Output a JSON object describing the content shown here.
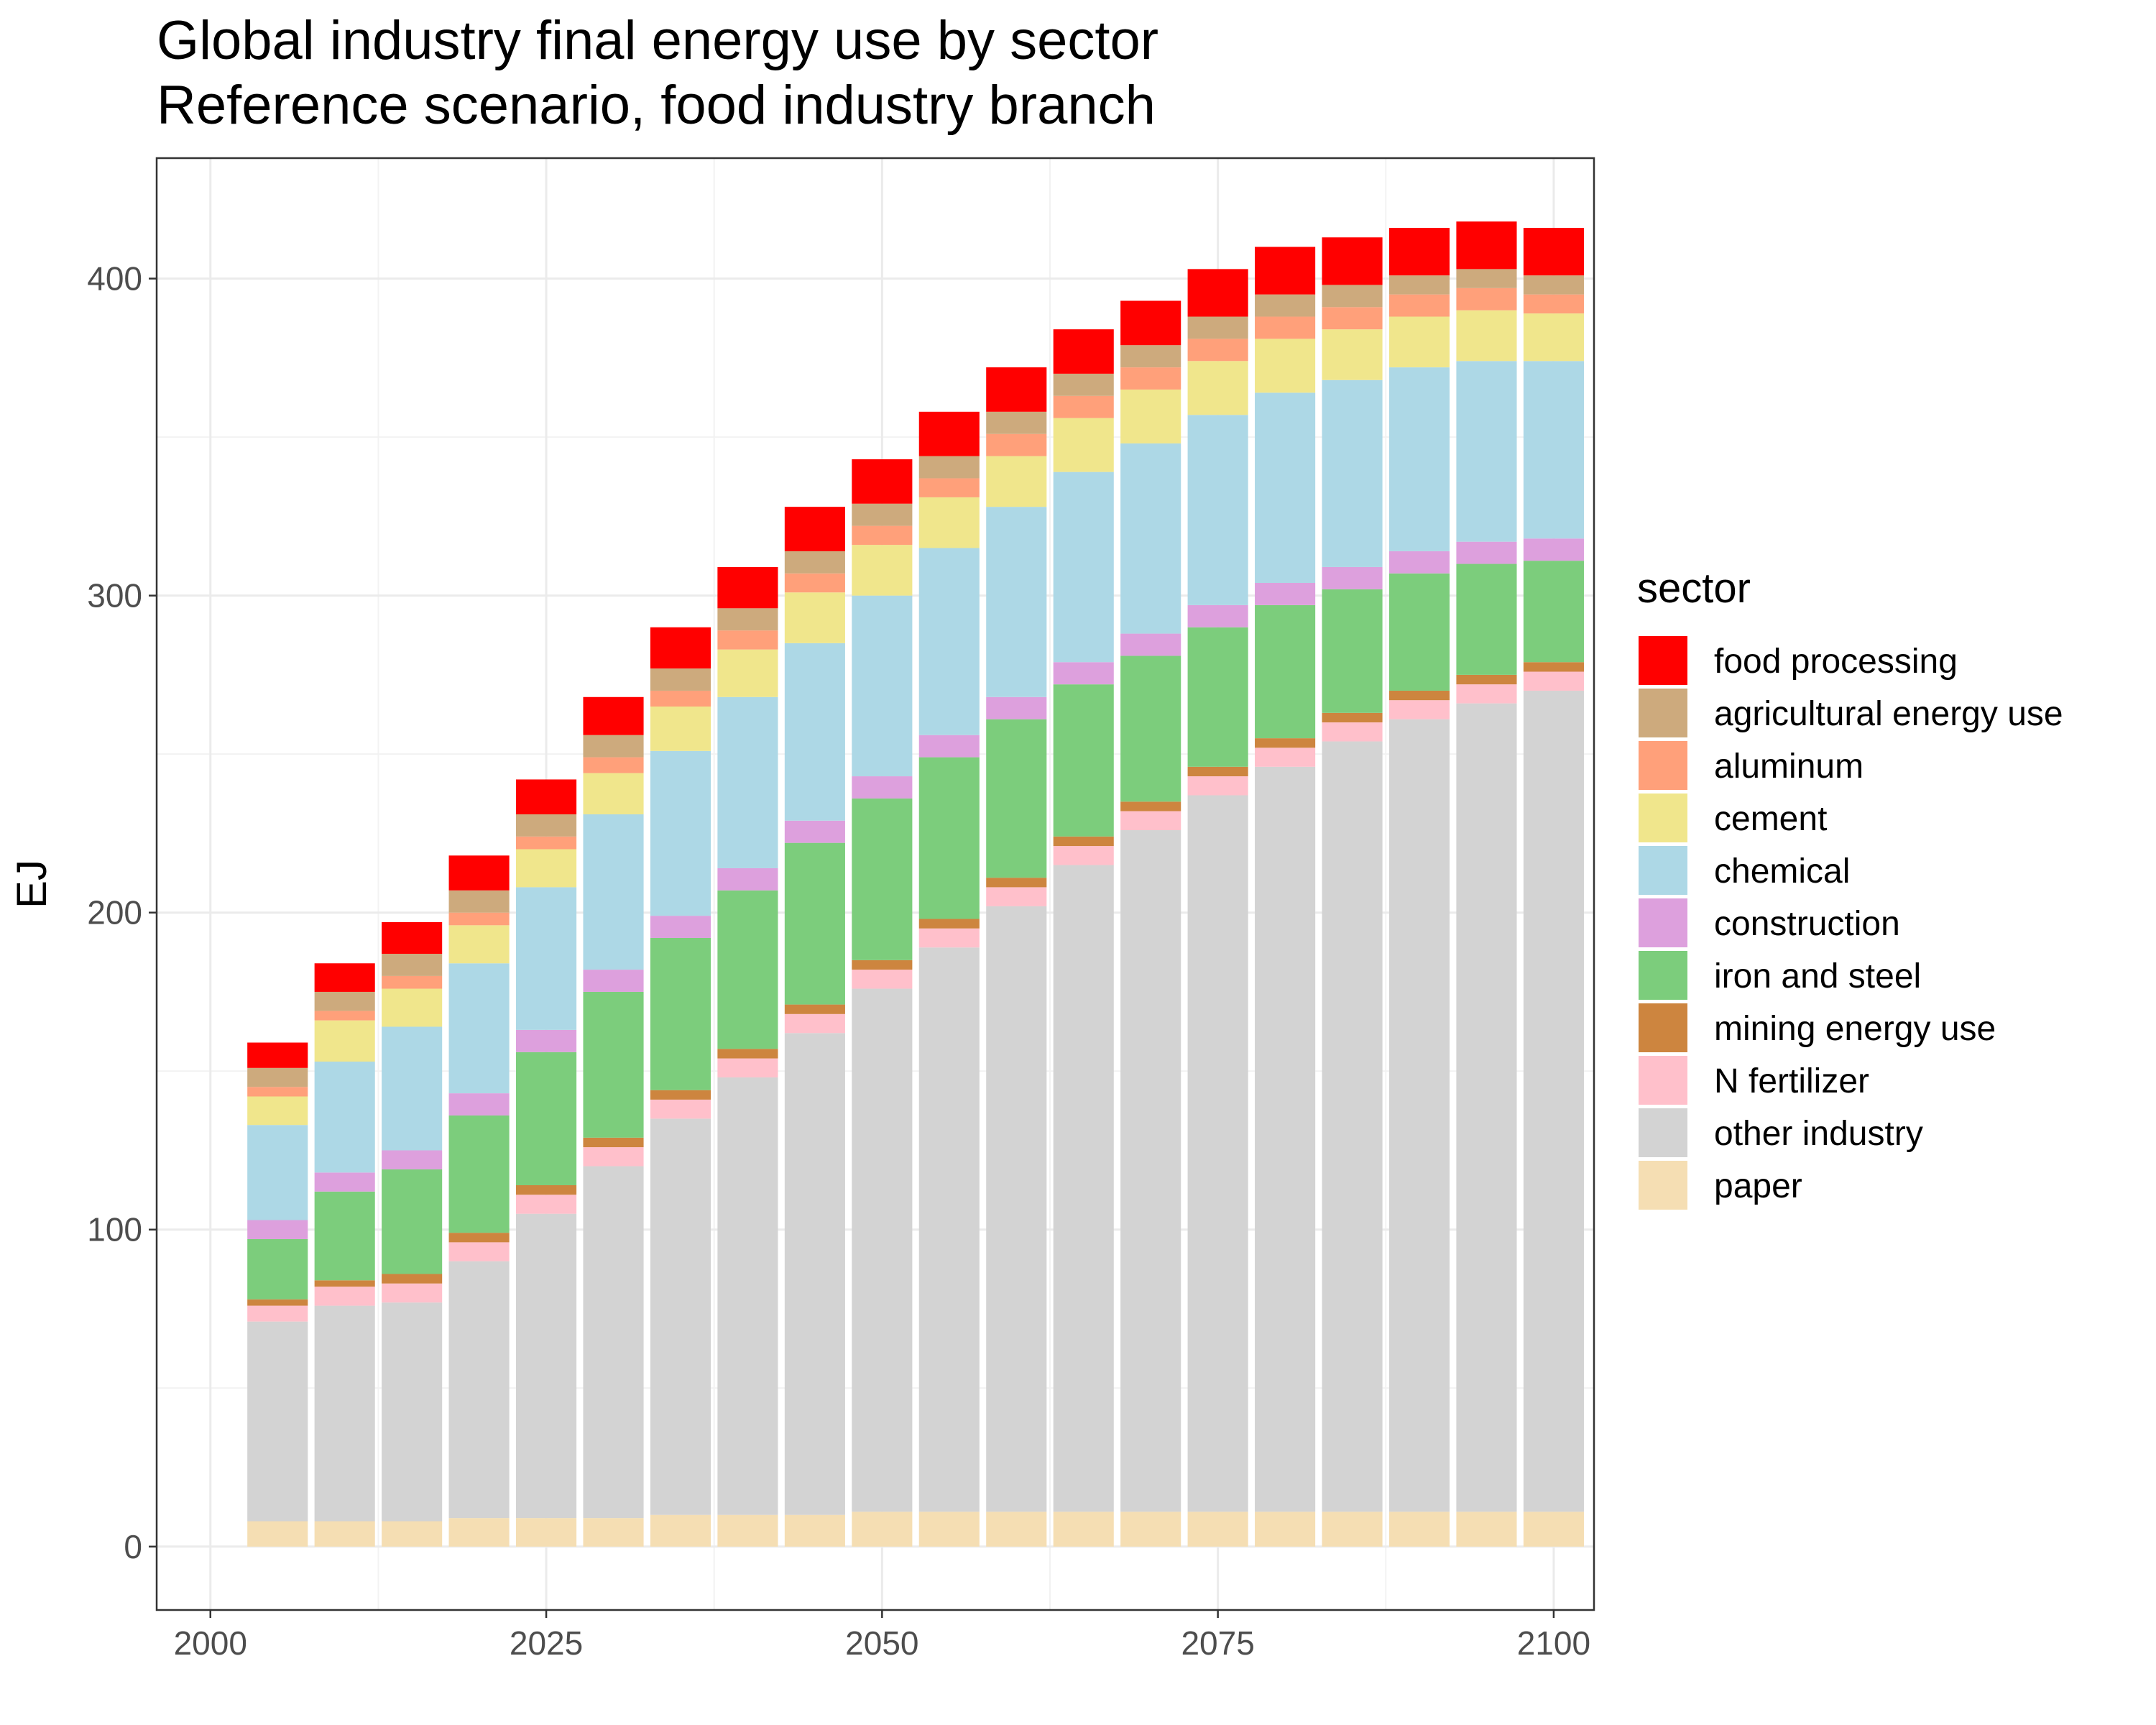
{
  "chart_data": {
    "type": "bar",
    "stacked": true,
    "title": "Global industry final energy use by sector",
    "subtitle": "Reference scenario, food industry branch",
    "xlabel": "",
    "ylabel": "EJ",
    "x": [
      2005,
      2010,
      2015,
      2020,
      2025,
      2030,
      2035,
      2040,
      2045,
      2050,
      2055,
      2060,
      2065,
      2070,
      2075,
      2080,
      2085,
      2090,
      2095,
      2100
    ],
    "xlim": [
      1996,
      2103
    ],
    "ylim": [
      -20,
      438
    ],
    "x_ticks": [
      2000,
      2025,
      2050,
      2075,
      2100
    ],
    "y_ticks": [
      0,
      100,
      200,
      300,
      400
    ],
    "grid": true,
    "legend_title": "sector",
    "legend_position": "right",
    "series": [
      {
        "name": "food processing",
        "color": "#ff0000",
        "values": [
          8,
          9,
          10,
          11,
          11,
          12,
          13,
          13,
          14,
          14,
          14,
          14,
          14,
          14,
          15,
          15,
          15,
          15,
          15,
          15
        ]
      },
      {
        "name": "agricultural energy use",
        "color": "#cdaa7d",
        "values": [
          6,
          6,
          7,
          7,
          7,
          7,
          7,
          7,
          7,
          7,
          7,
          7,
          7,
          7,
          7,
          7,
          7,
          6,
          6,
          6
        ]
      },
      {
        "name": "aluminum",
        "color": "#ffa07a",
        "values": [
          3,
          3,
          4,
          4,
          4,
          5,
          5,
          6,
          6,
          6,
          6,
          7,
          7,
          7,
          7,
          7,
          7,
          7,
          7,
          6
        ]
      },
      {
        "name": "cement",
        "color": "#f0e68c",
        "values": [
          9,
          13,
          12,
          12,
          12,
          13,
          14,
          15,
          16,
          16,
          16,
          16,
          17,
          17,
          17,
          17,
          16,
          16,
          16,
          15
        ]
      },
      {
        "name": "chemical",
        "color": "#add8e6",
        "values": [
          30,
          35,
          39,
          41,
          45,
          49,
          52,
          54,
          56,
          57,
          59,
          60,
          60,
          60,
          60,
          60,
          59,
          58,
          57,
          56
        ]
      },
      {
        "name": "construction",
        "color": "#dda0dd",
        "values": [
          6,
          6,
          6,
          7,
          7,
          7,
          7,
          7,
          7,
          7,
          7,
          7,
          7,
          7,
          7,
          7,
          7,
          7,
          7,
          7
        ]
      },
      {
        "name": "iron and steel",
        "color": "#7ccd7c",
        "values": [
          19,
          28,
          33,
          37,
          42,
          46,
          48,
          50,
          51,
          51,
          51,
          50,
          48,
          46,
          44,
          42,
          39,
          37,
          35,
          32
        ]
      },
      {
        "name": "mining energy use",
        "color": "#cd853f",
        "values": [
          2,
          2,
          3,
          3,
          3,
          3,
          3,
          3,
          3,
          3,
          3,
          3,
          3,
          3,
          3,
          3,
          3,
          3,
          3,
          3
        ]
      },
      {
        "name": "N fertilizer",
        "color": "#ffc0cb",
        "values": [
          5,
          6,
          6,
          6,
          6,
          6,
          6,
          6,
          6,
          6,
          6,
          6,
          6,
          6,
          6,
          6,
          6,
          6,
          6,
          6
        ]
      },
      {
        "name": "other industry",
        "color": "#d3d3d3",
        "values": [
          63,
          68,
          69,
          81,
          96,
          111,
          125,
          138,
          152,
          165,
          178,
          191,
          204,
          215,
          226,
          235,
          243,
          250,
          255,
          259
        ]
      },
      {
        "name": "paper",
        "color": "#f5deb3",
        "values": [
          8,
          8,
          8,
          9,
          9,
          9,
          10,
          10,
          10,
          11,
          11,
          11,
          11,
          11,
          11,
          11,
          11,
          11,
          11,
          11
        ]
      }
    ]
  }
}
